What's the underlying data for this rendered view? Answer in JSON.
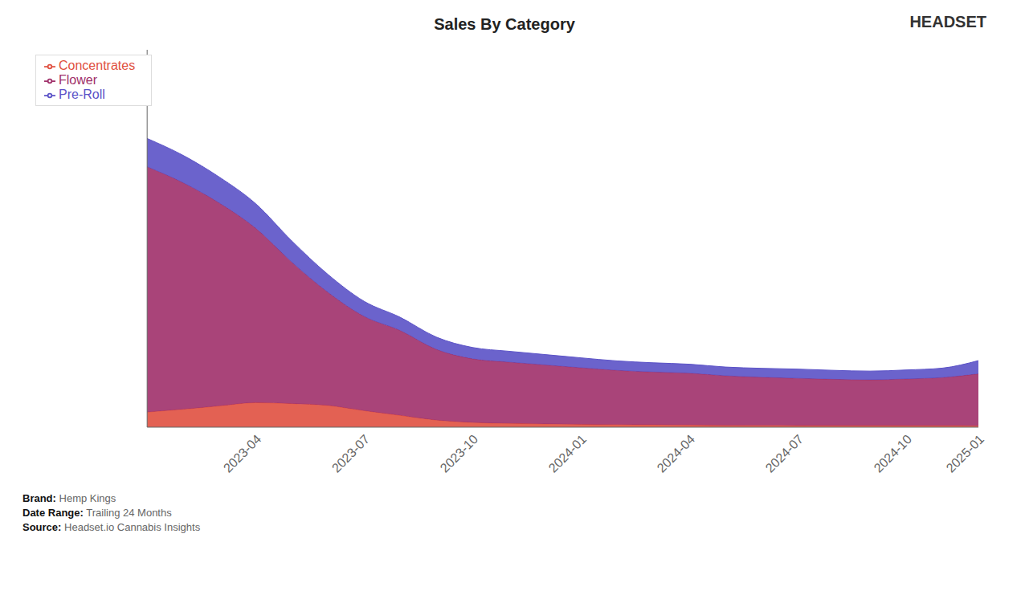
{
  "chart_data": {
    "type": "area",
    "title": "Sales By Category",
    "stacked": true,
    "categories": [
      null,
      null,
      null,
      "2023-04",
      null,
      null,
      "2023-07",
      null,
      null,
      "2023-10",
      null,
      null,
      "2024-01",
      null,
      null,
      "2024-04",
      null,
      null,
      "2024-07",
      null,
      null,
      "2024-10",
      null,
      "2025-01"
    ],
    "series": [
      {
        "name": "Concentrates",
        "color": "#e05040",
        "values": [
          3200,
          3800,
          4500,
          5200,
          5000,
          4600,
          3500,
          2500,
          1500,
          1000,
          800,
          700,
          600,
          550,
          500,
          450,
          400,
          380,
          360,
          350,
          340,
          330,
          320,
          310
        ]
      },
      {
        "name": "Flower",
        "color": "#a0306a",
        "values": [
          52000,
          48000,
          43000,
          37000,
          30000,
          24000,
          20000,
          18000,
          15000,
          13500,
          13000,
          12500,
          12000,
          11500,
          11200,
          11000,
          10500,
          10200,
          10000,
          9800,
          9700,
          9900,
          10200,
          11000
        ]
      },
      {
        "name": "Pre-Roll",
        "color": "#5b52c7",
        "values": [
          6000,
          5800,
          5500,
          5200,
          4500,
          3800,
          3200,
          2800,
          2600,
          2400,
          2300,
          2200,
          2100,
          2000,
          1950,
          1900,
          1850,
          1900,
          1950,
          1900,
          1850,
          1900,
          2000,
          2800
        ]
      }
    ],
    "ylim": [
      0,
      80000
    ],
    "tick_labels": "x",
    "grid": false,
    "legend": "upper left",
    "annotations": [
      {
        "label": "Brand:",
        "text": "Hemp Kings"
      },
      {
        "label": "Date Range:",
        "text": "Trailing 24 Months"
      },
      {
        "label": "Source:",
        "text": "Headset.io Cannabis Insights"
      },
      {
        "text": "HEADSET"
      }
    ]
  }
}
